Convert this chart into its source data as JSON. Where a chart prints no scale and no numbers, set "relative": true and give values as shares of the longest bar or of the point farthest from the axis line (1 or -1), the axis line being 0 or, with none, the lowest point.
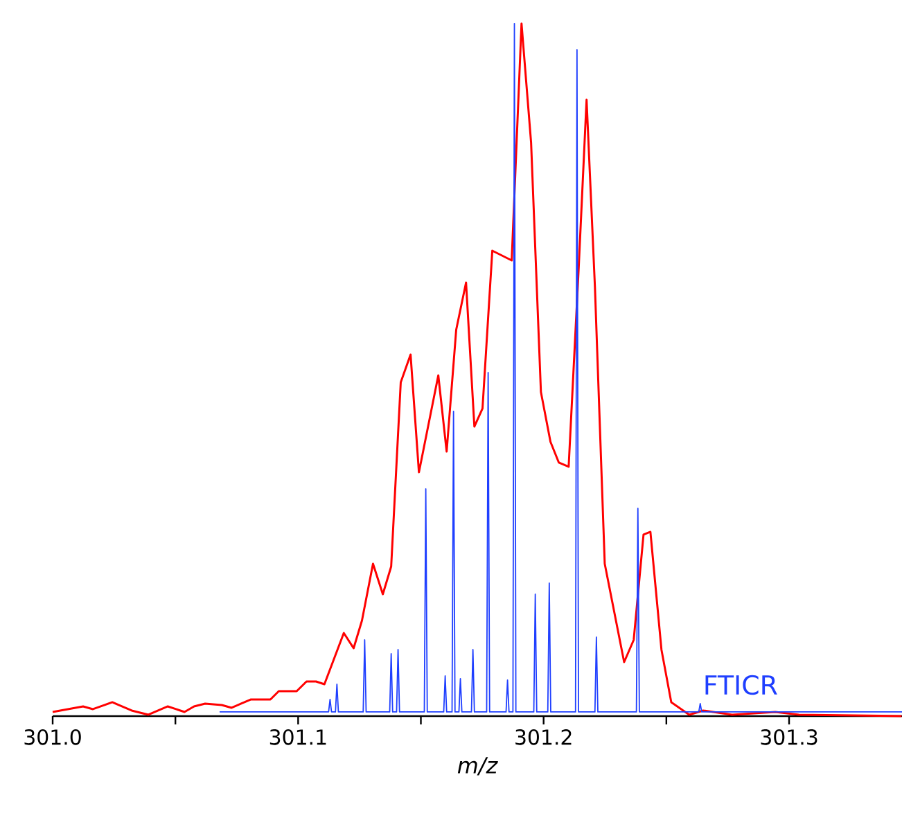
{
  "chart_data": {
    "type": "line",
    "relative": true,
    "xlabel": "m/z",
    "xlim": [
      301.0,
      301.346
    ],
    "xticks": [
      {
        "value": 301.0,
        "label": "301.0"
      },
      {
        "value": 301.05,
        "label": null
      },
      {
        "value": 301.1,
        "label": "301.1"
      },
      {
        "value": 301.15,
        "label": null
      },
      {
        "value": 301.2,
        "label": "301.2"
      },
      {
        "value": 301.25,
        "label": null
      },
      {
        "value": 301.3,
        "label": "301.3"
      }
    ],
    "series": [
      {
        "color": "#ff0000",
        "x": [
          301.0,
          301.0124,
          301.0164,
          301.0243,
          301.0322,
          301.039,
          301.0469,
          301.0537,
          301.0576,
          301.0621,
          301.0689,
          301.0729,
          301.0768,
          301.0808,
          301.0887,
          301.0921,
          301.0955,
          301.0994,
          301.1034,
          301.1073,
          301.1107,
          301.1186,
          301.1226,
          301.126,
          301.1305,
          301.1345,
          301.1379,
          301.1418,
          301.1458,
          301.1492,
          301.1571,
          301.1605,
          301.1644,
          301.1684,
          301.1718,
          301.1751,
          301.1791,
          301.187,
          301.191,
          301.1949,
          301.1989,
          301.2028,
          301.2062,
          301.2102,
          301.2143,
          301.2175,
          301.2209,
          301.2249,
          301.2328,
          301.2367,
          301.2407,
          301.2435,
          301.248,
          301.252,
          301.2593,
          301.265,
          301.2768,
          301.2944,
          301.304,
          301.3458
        ],
        "values": [
          0.006,
          0.014,
          0.01,
          0.02,
          0.008,
          0.002,
          0.014,
          0.006,
          0.014,
          0.018,
          0.016,
          0.012,
          0.018,
          0.024,
          0.024,
          0.036,
          0.036,
          0.036,
          0.05,
          0.05,
          0.046,
          0.12,
          0.098,
          0.138,
          0.22,
          0.176,
          0.216,
          0.482,
          0.522,
          0.352,
          0.492,
          0.382,
          0.558,
          0.626,
          0.418,
          0.444,
          0.672,
          0.658,
          1.0,
          0.828,
          0.468,
          0.396,
          0.366,
          0.36,
          0.648,
          0.89,
          0.62,
          0.22,
          0.078,
          0.11,
          0.262,
          0.266,
          0.096,
          0.02,
          0.002,
          0.008,
          0.002,
          0.006,
          0.002,
          0.0
        ]
      },
      {
        "name": "FTICR",
        "color": "#1f3fff",
        "x": [
          301.068,
          301.1124,
          301.113,
          301.1136,
          301.1152,
          301.1158,
          301.1164,
          301.1265,
          301.1271,
          301.1277,
          301.1373,
          301.1379,
          301.1385,
          301.1401,
          301.1407,
          301.1413,
          301.1514,
          301.152,
          301.1526,
          301.1593,
          301.1599,
          301.1605,
          301.1627,
          301.1633,
          301.1639,
          301.1655,
          301.1661,
          301.1667,
          301.1706,
          301.1712,
          301.1718,
          301.1768,
          301.1774,
          301.178,
          301.1847,
          301.1853,
          301.1859,
          301.1875,
          301.1881,
          301.1887,
          301.196,
          301.1966,
          301.1972,
          301.2017,
          301.2023,
          301.2029,
          301.213,
          301.2136,
          301.2142,
          301.2209,
          301.2215,
          301.2221,
          301.2378,
          301.2384,
          301.239,
          301.2632,
          301.2638,
          301.2644,
          301.346
        ],
        "values": [
          0.006,
          0.006,
          0.024,
          0.006,
          0.006,
          0.046,
          0.006,
          0.006,
          0.11,
          0.006,
          0.006,
          0.09,
          0.006,
          0.006,
          0.096,
          0.006,
          0.006,
          0.328,
          0.006,
          0.006,
          0.058,
          0.006,
          0.006,
          0.44,
          0.006,
          0.006,
          0.054,
          0.006,
          0.006,
          0.096,
          0.006,
          0.006,
          0.496,
          0.006,
          0.006,
          0.052,
          0.006,
          0.006,
          1.0,
          0.006,
          0.006,
          0.176,
          0.006,
          0.006,
          0.192,
          0.006,
          0.006,
          0.962,
          0.006,
          0.006,
          0.114,
          0.006,
          0.006,
          0.3,
          0.006,
          0.006,
          0.018,
          0.006,
          0.006
        ]
      }
    ]
  }
}
